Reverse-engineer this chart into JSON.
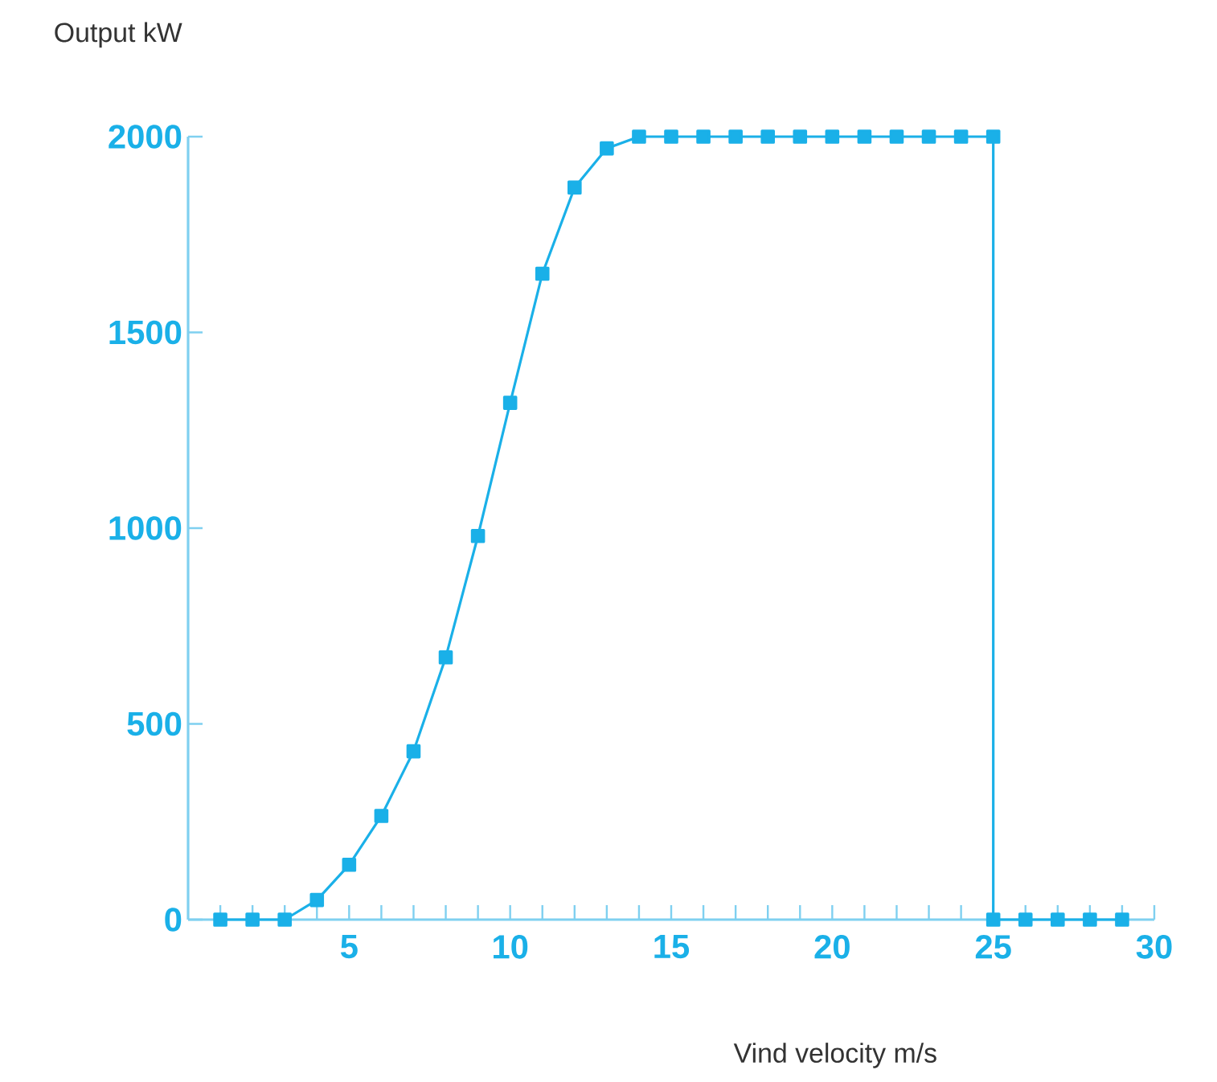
{
  "chart_data": {
    "type": "line",
    "xlabel": "Vind velocity m/s",
    "ylabel": "Output kW",
    "series": [
      {
        "color": "#1ab0e8",
        "x": [
          1,
          2,
          3,
          4,
          5,
          6,
          7,
          8,
          9,
          10,
          11,
          12,
          13,
          14,
          15,
          16,
          17,
          18,
          19,
          20,
          21,
          22,
          23,
          24,
          25,
          25,
          26,
          27,
          28,
          29
        ],
        "values": [
          0,
          0,
          0,
          50,
          140,
          265,
          430,
          670,
          980,
          1320,
          1650,
          1870,
          1970,
          2000,
          2000,
          2000,
          2000,
          2000,
          2000,
          2000,
          2000,
          2000,
          2000,
          2000,
          2000,
          0,
          0,
          0,
          0,
          0
        ]
      }
    ],
    "marker": "square",
    "line_style": "solid",
    "xlim": [
      0,
      30
    ],
    "xticks": [
      {
        "value": 1,
        "label": null
      },
      {
        "value": 2,
        "label": null
      },
      {
        "value": 3,
        "label": null
      },
      {
        "value": 4,
        "label": null
      },
      5,
      {
        "value": 6,
        "label": null
      },
      {
        "value": 7,
        "label": null
      },
      {
        "value": 8,
        "label": null
      },
      {
        "value": 9,
        "label": null
      },
      10,
      {
        "value": 11,
        "label": null
      },
      {
        "value": 12,
        "label": null
      },
      {
        "value": 13,
        "label": null
      },
      {
        "value": 14,
        "label": null
      },
      15,
      {
        "value": 16,
        "label": null
      },
      {
        "value": 17,
        "label": null
      },
      {
        "value": 18,
        "label": null
      },
      {
        "value": 19,
        "label": null
      },
      20,
      {
        "value": 21,
        "label": null
      },
      {
        "value": 22,
        "label": null
      },
      {
        "value": 23,
        "label": null
      },
      {
        "value": 24,
        "label": null
      },
      25,
      {
        "value": 26,
        "label": null
      },
      {
        "value": 27,
        "label": null
      },
      {
        "value": 28,
        "label": null
      },
      {
        "value": 29,
        "label": null
      },
      30
    ],
    "ylim": [
      0,
      2000
    ],
    "yticks": [
      0,
      500,
      1000,
      1500,
      2000
    ]
  }
}
